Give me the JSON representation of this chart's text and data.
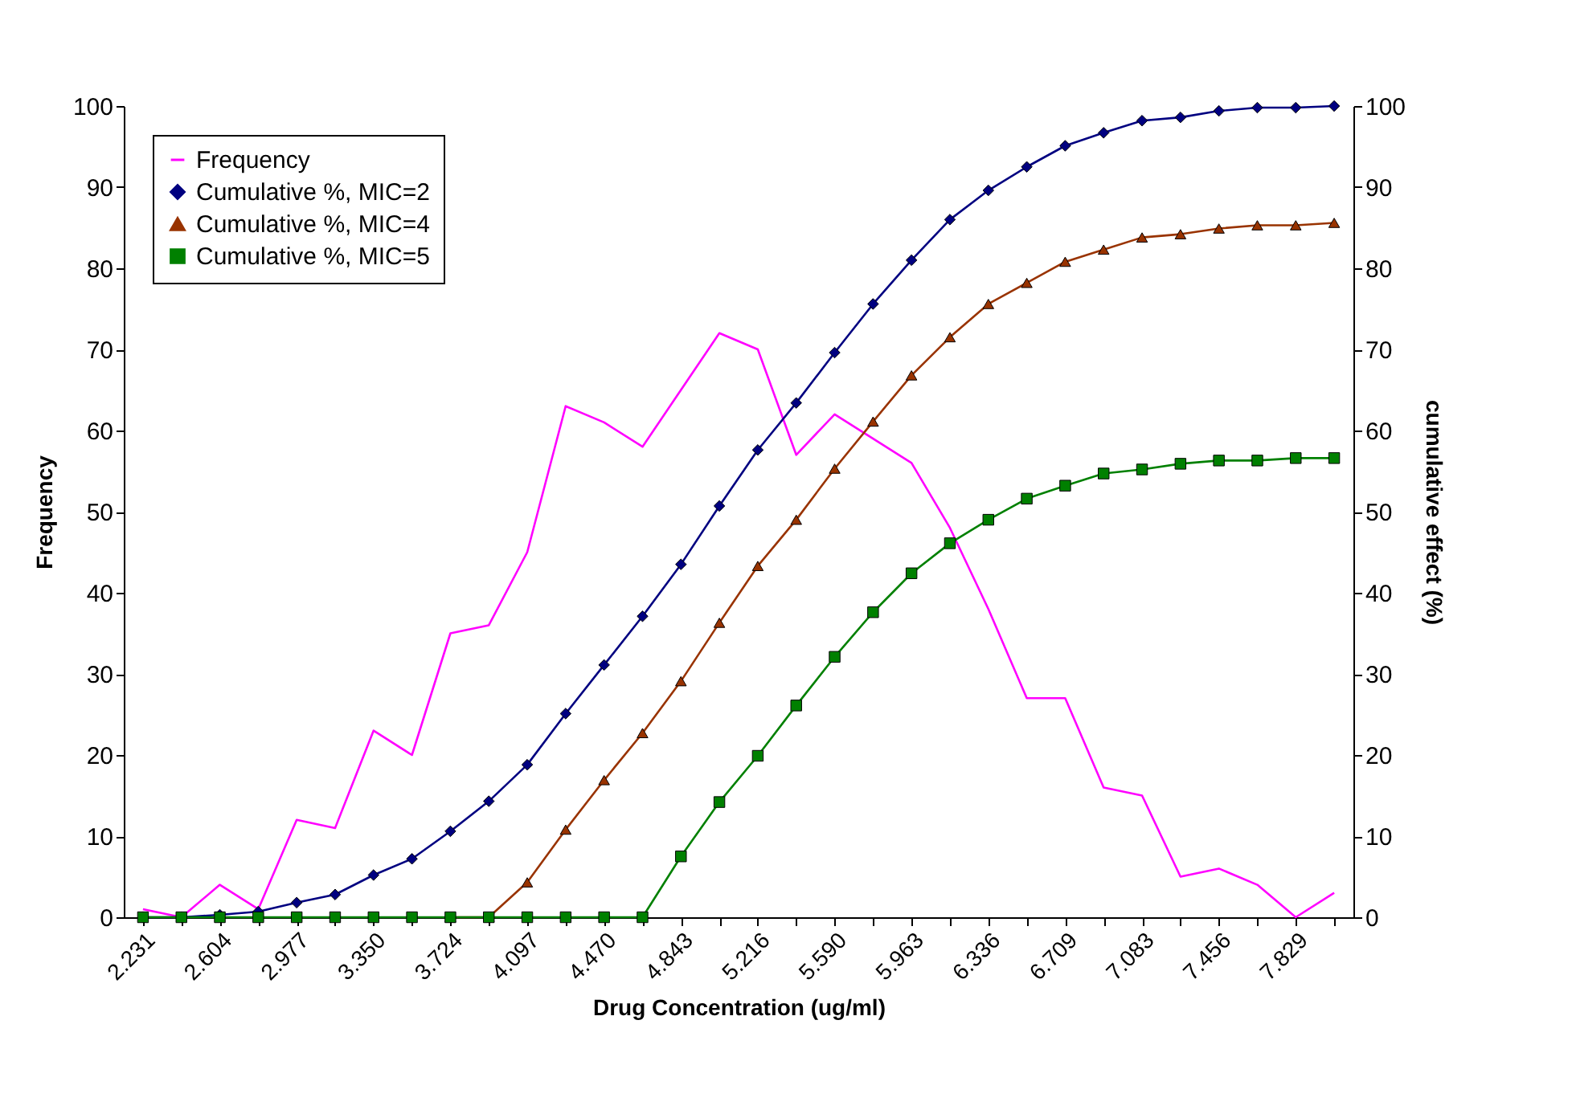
{
  "chart_data": {
    "type": "line",
    "xlabel": "Drug Concentration (ug/ml)",
    "ylabel": "Frequency",
    "y2label": "cumulative effect (%)",
    "categories": [
      "2.231",
      null,
      "2.604",
      null,
      "2.977",
      null,
      "3.350",
      null,
      "3.724",
      null,
      "4.097",
      null,
      "4.470",
      null,
      "4.843",
      null,
      "5.216",
      null,
      "5.590",
      null,
      "5.963",
      null,
      "6.336",
      null,
      "6.709",
      null,
      "7.083",
      null,
      "7.456",
      null,
      "7.829",
      null
    ],
    "series": [
      {
        "name": "Frequency",
        "color": "#ff00ff",
        "marker": "none",
        "values": [
          1,
          0,
          4,
          1,
          12,
          11,
          23,
          20,
          35,
          36,
          45,
          63,
          61,
          58,
          65,
          72,
          70,
          57,
          62,
          59,
          56,
          48,
          38,
          27,
          27,
          16,
          15,
          5,
          6,
          4,
          0,
          3
        ]
      },
      {
        "name": "Cumulative %, MIC=2",
        "color": "#000080",
        "marker": "diamond",
        "axis": "y2",
        "values": [
          0,
          0,
          0.3,
          0.7,
          1.8,
          2.8,
          5.2,
          7.2,
          10.6,
          14.3,
          18.8,
          25.1,
          31.1,
          37.1,
          43.5,
          50.7,
          57.6,
          63.4,
          69.6,
          75.6,
          81.0,
          86.0,
          89.6,
          92.5,
          95.1,
          96.7,
          98.2,
          98.6,
          99.4,
          99.8,
          99.8,
          100
        ]
      },
      {
        "name": "Cumulative %, MIC=4",
        "color": "#993300",
        "marker": "triangle",
        "axis": "y2",
        "values": [
          null,
          null,
          null,
          null,
          null,
          null,
          null,
          null,
          0,
          0,
          4.3,
          10.8,
          16.9,
          22.7,
          29.1,
          36.3,
          43.3,
          49.0,
          55.3,
          61.1,
          66.8,
          71.5,
          75.6,
          78.2,
          80.8,
          82.3,
          83.8,
          84.2,
          84.9,
          85.3,
          85.3,
          85.6
        ]
      },
      {
        "name": "Cumulative %, MIC=5",
        "color": "#008000",
        "marker": "square",
        "axis": "y2",
        "values": [
          0,
          0,
          0,
          0,
          0,
          0,
          0,
          0,
          0,
          0,
          0,
          0,
          0,
          0,
          7.5,
          14.2,
          19.9,
          26.1,
          32.1,
          37.6,
          42.4,
          46.1,
          49.0,
          51.6,
          53.2,
          54.7,
          55.2,
          55.9,
          56.3,
          56.3,
          56.6,
          56.6
        ]
      }
    ],
    "ylim": [
      0,
      100
    ],
    "yticks": [
      0,
      10,
      20,
      30,
      40,
      50,
      60,
      70,
      80,
      90,
      100
    ],
    "y2lim": [
      0,
      100
    ],
    "y2ticks": [
      0,
      10,
      20,
      30,
      40,
      50,
      60,
      70,
      80,
      90,
      100
    ],
    "legend": "top left",
    "grid": false
  }
}
